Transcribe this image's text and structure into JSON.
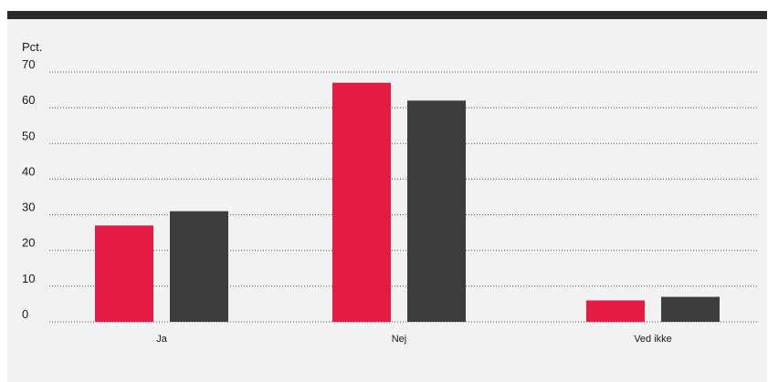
{
  "chart_data": {
    "type": "bar",
    "unit_label": "Pct.",
    "categories": [
      "Ja",
      "Nej",
      "Ved ikke"
    ],
    "series": [
      {
        "values": [
          27,
          67,
          6
        ],
        "color": "#e31b45"
      },
      {
        "values": [
          31,
          62,
          7
        ],
        "color": "#3d3d3d"
      }
    ],
    "yticks": [
      0,
      10,
      20,
      30,
      40,
      50,
      60,
      70
    ],
    "ylim": [
      0,
      70
    ],
    "grid": true,
    "frame_color": "#2b2b2b",
    "background": "#f2f2f2"
  }
}
